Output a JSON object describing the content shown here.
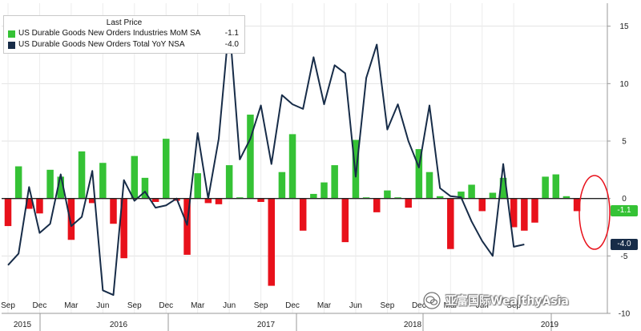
{
  "chart_data": {
    "type": "bar+line",
    "legend": {
      "title": "Last Price",
      "items": [
        {
          "label": "US Durable Goods New Orders Industries MoM SA",
          "value": "-1.1",
          "color": "#35c235"
        },
        {
          "label": "US Durable Goods New Orders Total YoY NSA",
          "value": "-4.0",
          "color": "#172c48"
        }
      ]
    },
    "ylim": [
      -10,
      17
    ],
    "y_ticks": [
      15,
      10,
      5,
      0,
      -5,
      -10
    ],
    "x_month_labels": [
      "Sep",
      "Dec",
      "Mar",
      "Jun",
      "Sep",
      "Dec",
      "Mar",
      "Jun",
      "Sep",
      "Dec",
      "Mar",
      "Jun",
      "Sep",
      "Dec",
      "Mar",
      "Jun",
      "Sep"
    ],
    "x_year_labels": [
      "2015",
      "2016",
      "2017",
      "2018",
      "2019"
    ],
    "last_values": [
      {
        "text": "-1.1",
        "value": -1.1,
        "color": "#35c235"
      },
      {
        "text": "-4.0",
        "value": -4.0,
        "color": "#172c48"
      }
    ],
    "series": [
      {
        "name": "US Durable Goods New Orders Industries MoM SA",
        "type": "bar",
        "positive_color": "#35c235",
        "negative_color": "#e8111b",
        "values": [
          -2.4,
          2.8,
          -0.9,
          -1.3,
          2.5,
          1.9,
          -3.6,
          4.1,
          -0.4,
          3.1,
          -2.2,
          -5.2,
          3.7,
          1.8,
          -0.3,
          5.2,
          -0.2,
          -4.9,
          2.2,
          -0.4,
          -0.5,
          2.9,
          0.1,
          7.3,
          -0.3,
          -7.6,
          2.3,
          5.6,
          -2.8,
          0.4,
          1.4,
          2.9,
          -3.8,
          5.1,
          0.1,
          -1.2,
          0.7,
          0.1,
          -0.8,
          4.3,
          2.3,
          0.2,
          -4.4,
          0.6,
          1.2,
          -1.1,
          0.5,
          1.8,
          -2.5,
          -2.8,
          -2.1,
          1.9,
          2.1,
          0.2,
          -1.1
        ]
      },
      {
        "name": "US Durable Goods New Orders Total YoY NSA",
        "type": "line",
        "color": "#172c48",
        "values": [
          -5.8,
          -4.8,
          1.0,
          -3.0,
          -2.2,
          2.1,
          -2.4,
          -1.6,
          2.4,
          -8.0,
          -8.4,
          1.6,
          -0.2,
          0.6,
          -0.8,
          -0.6,
          0.0,
          -2.3,
          5.7,
          0.0,
          5.2,
          15.3,
          3.4,
          5.2,
          8.1,
          3.0,
          9.0,
          8.2,
          7.8,
          12.3,
          8.2,
          11.6,
          10.9,
          1.9,
          10.5,
          13.4,
          6.0,
          8.2,
          5.0,
          2.7,
          8.1,
          0.9,
          0.2,
          0.1,
          -2.0,
          -3.7,
          -5.0,
          3.0,
          -4.2,
          -4.0
        ]
      }
    ]
  },
  "watermark": "亚富国际WealthyAsia"
}
